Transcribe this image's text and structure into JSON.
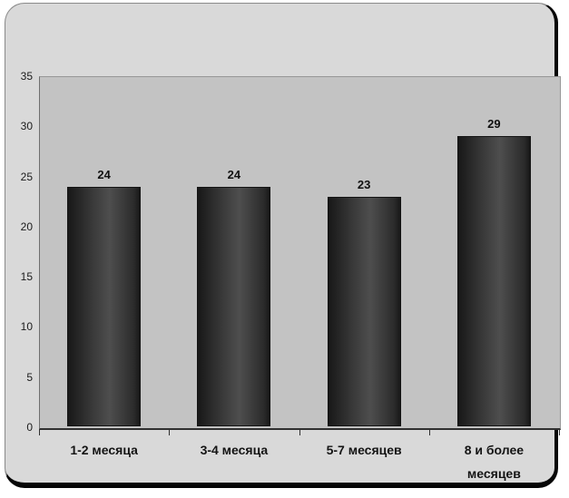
{
  "chart_data": {
    "type": "bar",
    "title": "",
    "xlabel": "",
    "ylabel": "",
    "categories": [
      "1-2 месяца",
      "3-4 месяца",
      "5-7 месяцев",
      "8 и более месяцев"
    ],
    "values": [
      24,
      24,
      23,
      29
    ],
    "bar_labels": [
      "24",
      "24",
      "23",
      "29"
    ],
    "ylim": [
      0,
      35
    ],
    "yticks": [
      0,
      5,
      10,
      15,
      20,
      25,
      30,
      35
    ],
    "grid": false,
    "legend": null,
    "colors": {
      "frame_bg": "#d9d9d9",
      "plot_bg": "#c3c3c3",
      "bar_edge_dark": "#181818",
      "bar_center_light": "#4e4e4e",
      "axis": "#303030",
      "text": "#1a1a1a"
    }
  }
}
